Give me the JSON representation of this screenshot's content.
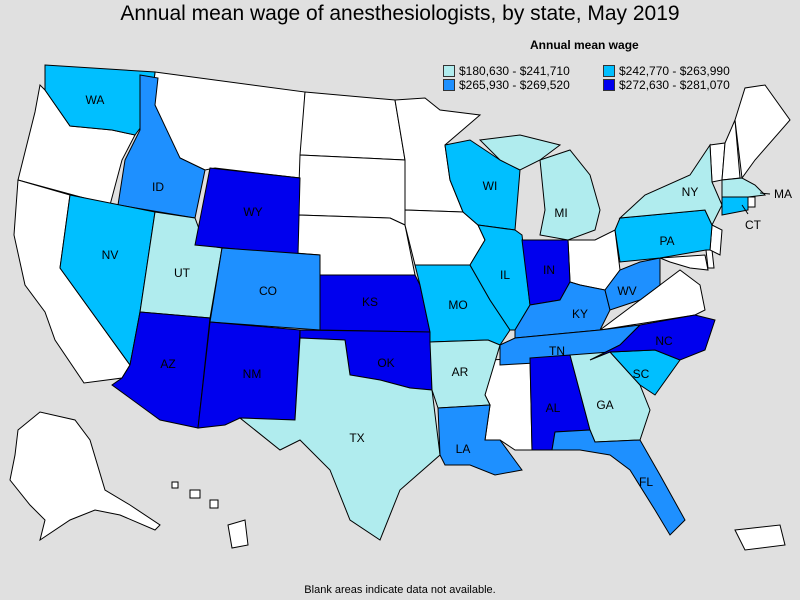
{
  "title": "Annual mean wage of anesthesiologists, by state, May 2019",
  "legend": {
    "title": "Annual mean wage",
    "items": [
      {
        "label": "$180,630 - $241,710",
        "color": "#b0ecee"
      },
      {
        "label": "$242,770 - $263,990",
        "color": "#00bfff"
      },
      {
        "label": "$265,930 - $269,520",
        "color": "#1e90ff"
      },
      {
        "label": "$272,630 - $281,070",
        "color": "#0000ee"
      }
    ]
  },
  "footnote": "Blank areas indicate data not available.",
  "colors": {
    "no_data": "#ffffff",
    "background": "#e0e0e0"
  },
  "states": [
    {
      "abbr": "WA",
      "tier": 1
    },
    {
      "abbr": "ID",
      "tier": 2
    },
    {
      "abbr": "NV",
      "tier": 1
    },
    {
      "abbr": "UT",
      "tier": 0
    },
    {
      "abbr": "WY",
      "tier": 3
    },
    {
      "abbr": "CO",
      "tier": 2
    },
    {
      "abbr": "AZ",
      "tier": 3
    },
    {
      "abbr": "NM",
      "tier": 3
    },
    {
      "abbr": "KS",
      "tier": 3
    },
    {
      "abbr": "OK",
      "tier": 3
    },
    {
      "abbr": "TX",
      "tier": 0
    },
    {
      "abbr": "MO",
      "tier": 1
    },
    {
      "abbr": "AR",
      "tier": 0
    },
    {
      "abbr": "LA",
      "tier": 2
    },
    {
      "abbr": "WI",
      "tier": 1
    },
    {
      "abbr": "IL",
      "tier": 1
    },
    {
      "abbr": "IN",
      "tier": 3
    },
    {
      "abbr": "MI",
      "tier": 0
    },
    {
      "abbr": "KY",
      "tier": 2
    },
    {
      "abbr": "TN",
      "tier": 2
    },
    {
      "abbr": "AL",
      "tier": 3
    },
    {
      "abbr": "GA",
      "tier": 0
    },
    {
      "abbr": "FL",
      "tier": 2
    },
    {
      "abbr": "SC",
      "tier": 1
    },
    {
      "abbr": "NC",
      "tier": 3
    },
    {
      "abbr": "WV",
      "tier": 2
    },
    {
      "abbr": "PA",
      "tier": 1
    },
    {
      "abbr": "NY",
      "tier": 0
    },
    {
      "abbr": "CT",
      "tier": 1
    },
    {
      "abbr": "MA",
      "tier": 0
    }
  ],
  "no_data_states": [
    "OR",
    "CA",
    "MT",
    "ND",
    "SD",
    "NE",
    "MN",
    "IA",
    "MS",
    "OH",
    "VA",
    "MD",
    "DE",
    "NJ",
    "VT",
    "NH",
    "ME",
    "RI",
    "AK",
    "HI",
    "PR"
  ]
}
